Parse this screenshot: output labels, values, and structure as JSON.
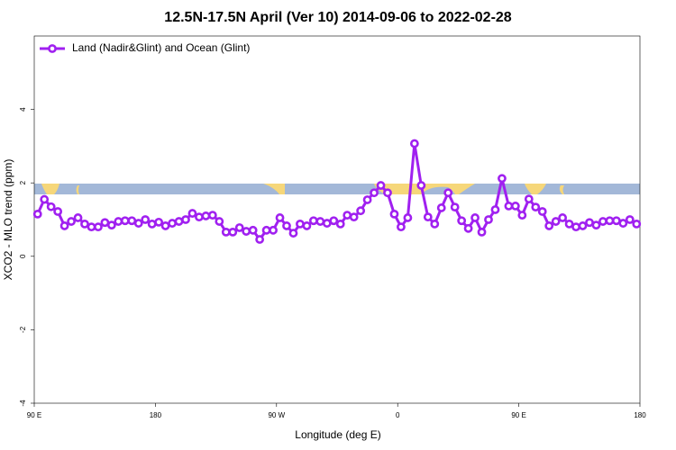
{
  "chart_data": {
    "type": "line",
    "title": "12.5N-17.5N April (Ver 10)   2014-09-06 to 2022-02-28",
    "xlabel": "Longitude (deg E)",
    "ylabel": "XCO2 - MLO trend (ppm)",
    "xlim": [
      90,
      540
    ],
    "xticks": [
      {
        "value": 90,
        "label": "90 E"
      },
      180,
      {
        "value": 270,
        "label": "90 W"
      },
      {
        "value": 360,
        "label": "0"
      },
      {
        "value": 450,
        "label": "90 E"
      },
      {
        "value": 540,
        "label": "180"
      }
    ],
    "ylim": [
      -4,
      6
    ],
    "yticks": [
      -4,
      -2,
      0,
      2,
      4
    ],
    "legend": "top-left",
    "x": [
      92.5,
      97.5,
      102.5,
      107.5,
      112.5,
      117.5,
      122.5,
      127.5,
      132.5,
      137.5,
      142.5,
      147.5,
      152.5,
      157.5,
      162.5,
      167.5,
      172.5,
      177.5,
      182.5,
      187.5,
      192.5,
      197.5,
      202.5,
      207.5,
      212.5,
      217.5,
      222.5,
      227.5,
      232.5,
      237.5,
      242.5,
      247.5,
      252.5,
      257.5,
      262.5,
      267.5,
      272.5,
      277.5,
      282.5,
      287.5,
      292.5,
      297.5,
      302.5,
      307.5,
      312.5,
      317.5,
      322.5,
      327.5,
      332.5,
      337.5,
      342.5,
      347.5,
      352.5,
      357.5,
      362.5,
      367.5,
      372.5,
      377.5,
      382.5,
      387.5,
      392.5,
      397.5,
      402.5,
      407.5,
      412.5,
      417.5,
      422.5,
      427.5,
      432.5,
      437.5,
      442.5,
      447.5,
      452.5,
      457.5,
      462.5,
      467.5,
      472.5,
      477.5,
      482.5,
      487.5,
      492.5,
      497.5,
      502.5,
      507.5,
      512.5,
      517.5,
      522.5,
      527.5,
      532.5,
      537.5
    ],
    "series": [
      {
        "name": "Land (Nadir&Glint) and Ocean (Glint)",
        "color": "#a020f0",
        "values": [
          1.15,
          1.55,
          1.35,
          1.22,
          0.83,
          0.95,
          1.05,
          0.88,
          0.8,
          0.8,
          0.92,
          0.85,
          0.95,
          0.97,
          0.97,
          0.9,
          1.0,
          0.88,
          0.93,
          0.83,
          0.9,
          0.95,
          1.0,
          1.17,
          1.07,
          1.1,
          1.12,
          0.95,
          0.66,
          0.66,
          0.78,
          0.68,
          0.71,
          0.46,
          0.71,
          0.71,
          1.05,
          0.83,
          0.63,
          0.88,
          0.83,
          0.97,
          0.95,
          0.9,
          0.97,
          0.88,
          1.12,
          1.07,
          1.24,
          1.54,
          1.73,
          1.93,
          1.73,
          1.15,
          0.8,
          1.05,
          3.07,
          1.93,
          1.07,
          0.88,
          1.32,
          1.73,
          1.34,
          0.97,
          0.76,
          1.05,
          0.66,
          1.0,
          1.27,
          2.12,
          1.37,
          1.37,
          1.12,
          1.56,
          1.34,
          1.22,
          0.83,
          0.95,
          1.05,
          0.88,
          0.8,
          0.83,
          0.92,
          0.85,
          0.95,
          0.97,
          0.97,
          0.9,
          1.0,
          0.88
        ]
      }
    ]
  }
}
